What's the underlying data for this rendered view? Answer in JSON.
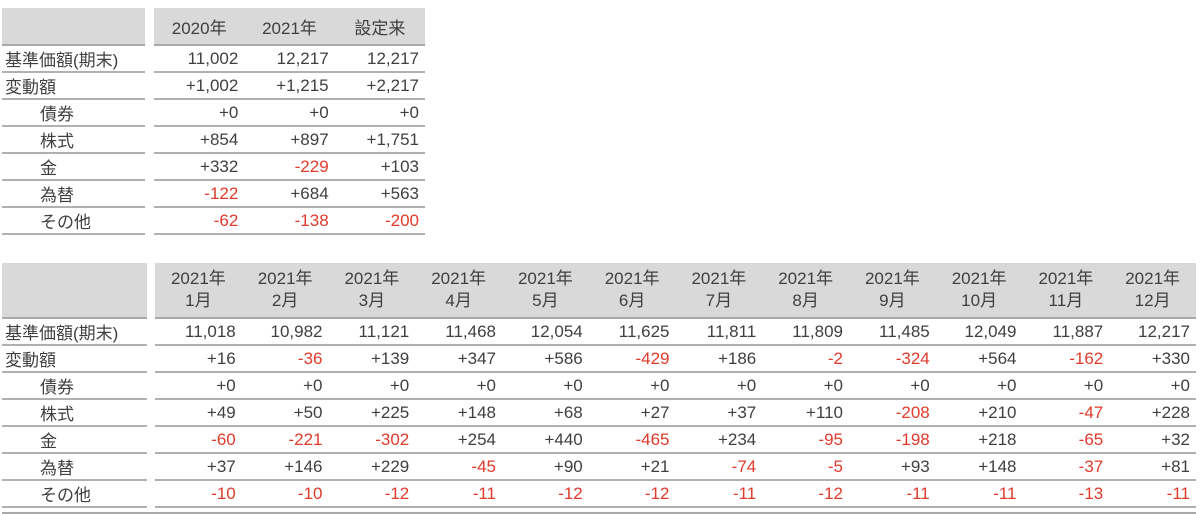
{
  "colors": {
    "header_bg": "#d9d9d9",
    "text": "#3f3f3f",
    "negative": "#e03a2b",
    "rule": "#a9a9a9"
  },
  "annual_table": {
    "headers": [
      "2020年",
      "2021年",
      "設定来"
    ],
    "rows": [
      {
        "label": "基準価額(期末)",
        "indent": false,
        "values": [
          "11,002",
          "12,217",
          "12,217"
        ]
      },
      {
        "label": "変動額",
        "indent": false,
        "values": [
          "+1,002",
          "+1,215",
          "+2,217"
        ]
      },
      {
        "label": "債券",
        "indent": true,
        "values": [
          "+0",
          "+0",
          "+0"
        ]
      },
      {
        "label": "株式",
        "indent": true,
        "values": [
          "+854",
          "+897",
          "+1,751"
        ]
      },
      {
        "label": "金",
        "indent": true,
        "values": [
          "+332",
          "-229",
          "+103"
        ]
      },
      {
        "label": "為替",
        "indent": true,
        "values": [
          "-122",
          "+684",
          "+563"
        ]
      },
      {
        "label": "その他",
        "indent": true,
        "values": [
          "-62",
          "-138",
          "-200"
        ]
      }
    ]
  },
  "monthly_table": {
    "header_year": "2021年",
    "months": [
      "1月",
      "2月",
      "3月",
      "4月",
      "5月",
      "6月",
      "7月",
      "8月",
      "9月",
      "10月",
      "11月",
      "12月"
    ],
    "rows": [
      {
        "label": "基準価額(期末)",
        "indent": false,
        "values": [
          "11,018",
          "10,982",
          "11,121",
          "11,468",
          "12,054",
          "11,625",
          "11,811",
          "11,809",
          "11,485",
          "12,049",
          "11,887",
          "12,217"
        ]
      },
      {
        "label": "変動額",
        "indent": false,
        "values": [
          "+16",
          "-36",
          "+139",
          "+347",
          "+586",
          "-429",
          "+186",
          "-2",
          "-324",
          "+564",
          "-162",
          "+330"
        ]
      },
      {
        "label": "債券",
        "indent": true,
        "values": [
          "+0",
          "+0",
          "+0",
          "+0",
          "+0",
          "+0",
          "+0",
          "+0",
          "+0",
          "+0",
          "+0",
          "+0"
        ]
      },
      {
        "label": "株式",
        "indent": true,
        "values": [
          "+49",
          "+50",
          "+225",
          "+148",
          "+68",
          "+27",
          "+37",
          "+110",
          "-208",
          "+210",
          "-47",
          "+228"
        ]
      },
      {
        "label": "金",
        "indent": true,
        "values": [
          "-60",
          "-221",
          "-302",
          "+254",
          "+440",
          "-465",
          "+234",
          "-95",
          "-198",
          "+218",
          "-65",
          "+32"
        ]
      },
      {
        "label": "為替",
        "indent": true,
        "values": [
          "+37",
          "+146",
          "+229",
          "-45",
          "+90",
          "+21",
          "-74",
          "-5",
          "+93",
          "+148",
          "-37",
          "+81"
        ]
      },
      {
        "label": "その他",
        "indent": true,
        "values": [
          "-10",
          "-10",
          "-12",
          "-11",
          "-12",
          "-12",
          "-11",
          "-12",
          "-11",
          "-11",
          "-13",
          "-11"
        ]
      }
    ]
  }
}
